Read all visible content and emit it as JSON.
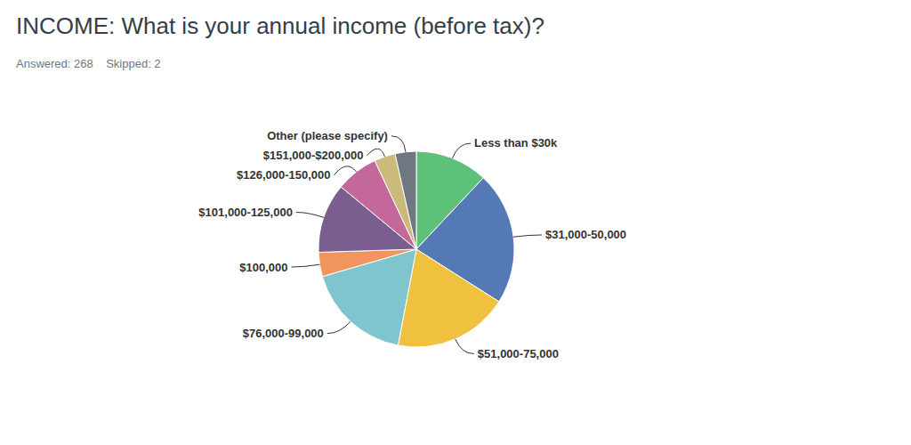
{
  "chart_data": {
    "type": "pie",
    "title": "INCOME: What is your annual income (before tax)?",
    "subtitle": "Answered: 268    Skipped: 2",
    "categories": [
      "Less than $30k",
      "$31,000-50,000",
      "$51,000-75,000",
      "$76,000-99,000",
      "$100,000",
      "$101,000-125,000",
      "$126,000-150,000",
      "$151,000-$200,000",
      "Other (please specify)"
    ],
    "values": [
      12,
      22,
      19,
      17.5,
      4,
      11.5,
      7,
      3.5,
      3.5
    ],
    "colors": [
      "#5ec17a",
      "#5579b4",
      "#f0c13f",
      "#80c4ce",
      "#f1955f",
      "#7a5e8f",
      "#c4679b",
      "#cbba7b",
      "#6f7880"
    ]
  }
}
